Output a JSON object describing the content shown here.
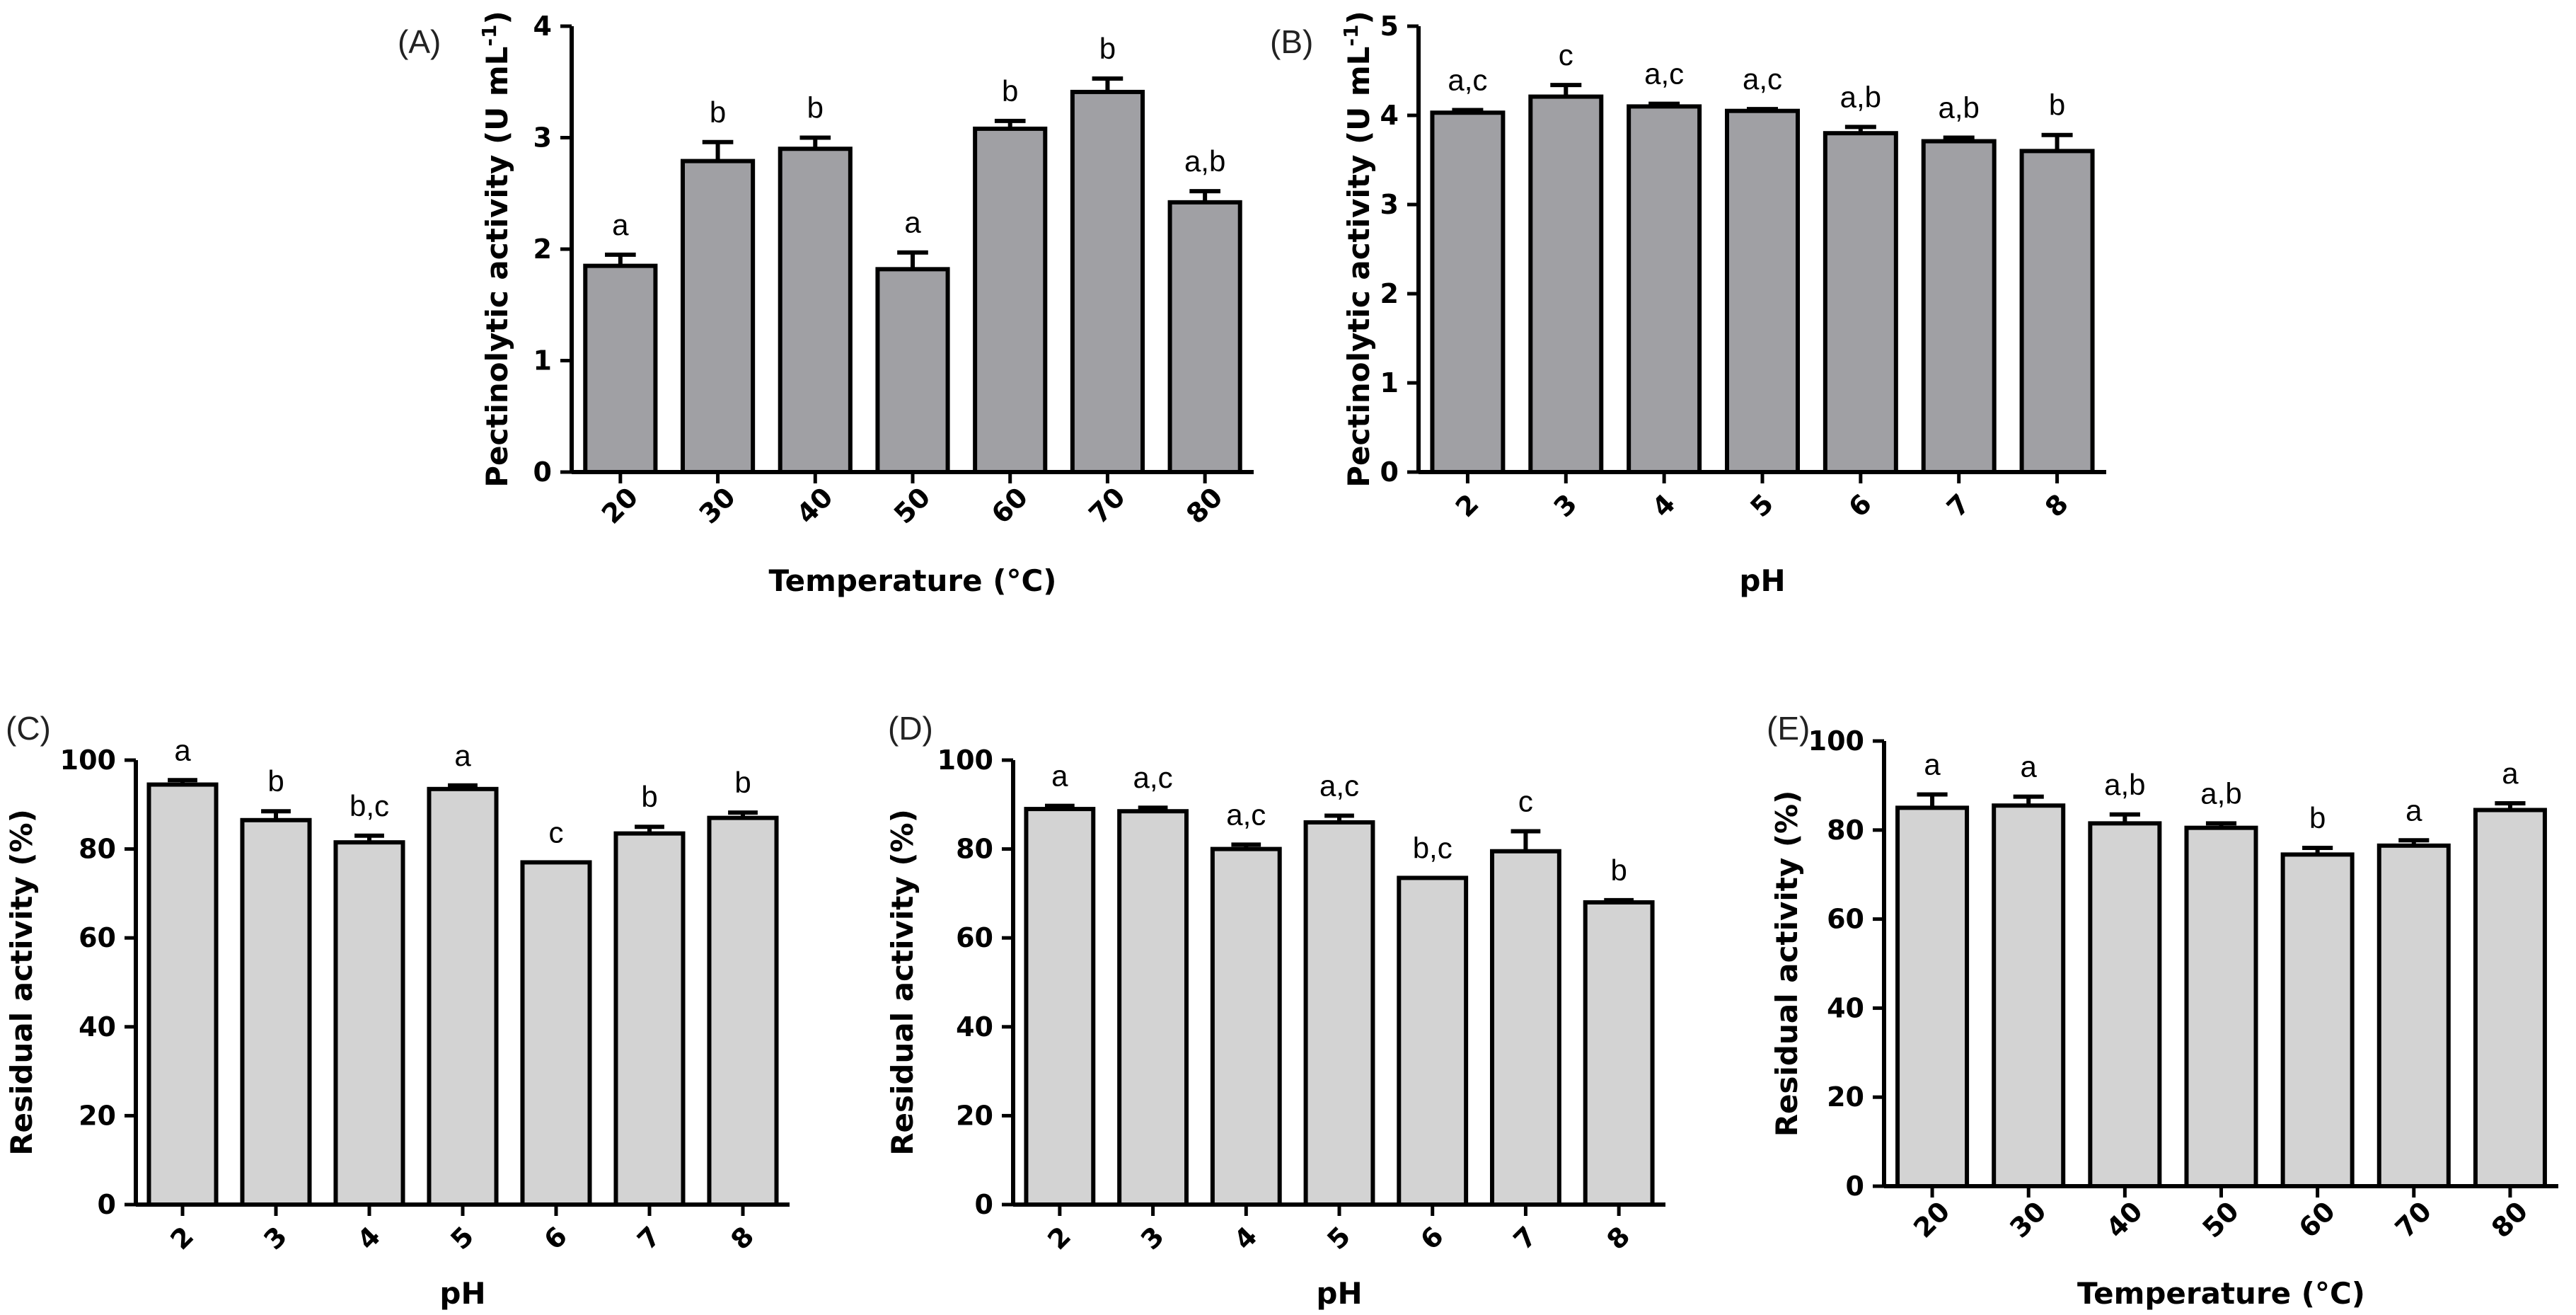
{
  "chart_data": [
    {
      "id": "A",
      "panel_label": "(A)",
      "type": "bar",
      "xlabel": "Temperature (°C)",
      "ylabel": "Pectinolytic activity (U mL",
      "ylabel_sup": "-1",
      "ylabel_end": ")",
      "ylim": [
        0,
        4
      ],
      "yticks": [
        "0",
        "1",
        "2",
        "3",
        "4"
      ],
      "categories": [
        "20",
        "30",
        "40",
        "50",
        "60",
        "70",
        "80"
      ],
      "values": [
        1.85,
        2.79,
        2.9,
        1.82,
        3.08,
        3.41,
        2.42
      ],
      "errors": [
        0.1,
        0.17,
        0.1,
        0.15,
        0.07,
        0.12,
        0.1
      ],
      "labels": [
        "a",
        "b",
        "b",
        "a",
        "b",
        "b",
        "a,b"
      ],
      "bar_color": "#a0a0a4",
      "rotate_ticks": true
    },
    {
      "id": "B",
      "panel_label": "(B)",
      "type": "bar",
      "xlabel": "pH",
      "ylabel": "Pectinolytic activity (U mL",
      "ylabel_sup": "-1",
      "ylabel_end": ")",
      "ylim": [
        0,
        5
      ],
      "yticks": [
        "0",
        "1",
        "2",
        "3",
        "4",
        "5"
      ],
      "categories": [
        "2",
        "3",
        "4",
        "5",
        "6",
        "7",
        "8"
      ],
      "values": [
        4.03,
        4.21,
        4.1,
        4.05,
        3.8,
        3.71,
        3.6
      ],
      "errors": [
        0.03,
        0.13,
        0.03,
        0.02,
        0.07,
        0.04,
        0.18
      ],
      "labels": [
        "a,c",
        "c",
        "a,c",
        "a,c",
        "a,b",
        "a,b",
        "b"
      ],
      "bar_color": "#a0a0a4",
      "rotate_ticks": true
    },
    {
      "id": "C",
      "panel_label": "(C)",
      "type": "bar",
      "xlabel": "pH",
      "ylabel": "Residual activity (%)",
      "ylim": [
        0,
        100
      ],
      "yticks": [
        "0",
        "20",
        "40",
        "60",
        "80",
        "100"
      ],
      "categories": [
        "2",
        "3",
        "4",
        "5",
        "6",
        "7",
        "8"
      ],
      "values": [
        94.5,
        86.5,
        81.5,
        93.5,
        77,
        83.5,
        87
      ],
      "errors": [
        1,
        2,
        1.5,
        0.8,
        0,
        1.5,
        1.2
      ],
      "labels": [
        "a",
        "b",
        "b,c",
        "a",
        "c",
        "b",
        "b"
      ],
      "bar_color": "#d3d3d3",
      "rotate_ticks": true
    },
    {
      "id": "D",
      "panel_label": "(D)",
      "type": "bar",
      "xlabel": "pH",
      "ylabel": "Residual activity (%)",
      "ylim": [
        0,
        100
      ],
      "yticks": [
        "0",
        "20",
        "40",
        "60",
        "80",
        "100"
      ],
      "categories": [
        "2",
        "3",
        "4",
        "5",
        "6",
        "7",
        "8"
      ],
      "values": [
        89,
        88.5,
        80,
        86,
        73.5,
        79.5,
        68
      ],
      "errors": [
        0.7,
        0.8,
        1,
        1.5,
        0,
        4.5,
        0.5
      ],
      "labels": [
        "a",
        "a,c",
        "a,c",
        "a,c",
        "b,c",
        "c",
        "b"
      ],
      "bar_color": "#d3d3d3",
      "rotate_ticks": true
    },
    {
      "id": "E",
      "panel_label": "(E)",
      "type": "bar",
      "xlabel": "Temperature (°C)",
      "ylabel": "Residual activity (%)",
      "ylim": [
        0,
        100
      ],
      "yticks": [
        "0",
        "20",
        "40",
        "60",
        "80",
        "100"
      ],
      "categories": [
        "20",
        "30",
        "40",
        "50",
        "60",
        "70",
        "80"
      ],
      "values": [
        85,
        85.5,
        81.5,
        80.5,
        74.5,
        76.5,
        84.5
      ],
      "errors": [
        3,
        2,
        2,
        1,
        1.5,
        1.2,
        1.5
      ],
      "labels": [
        "a",
        "a",
        "a,b",
        "a,b",
        "b",
        "a",
        "a"
      ],
      "bar_color": "#d3d3d3",
      "rotate_ticks": true
    }
  ]
}
